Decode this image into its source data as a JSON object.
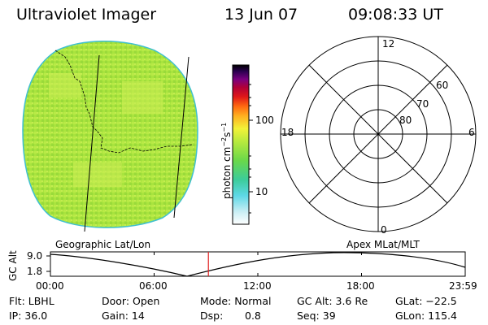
{
  "header": {
    "instrument": "Ultraviolet Imager",
    "date": "13 Jun 07",
    "time": "09:08:33 UT"
  },
  "colorbar": {
    "label_main": "photon cm",
    "label_exp1": "−2",
    "label_mid": "s",
    "label_exp2": "−1",
    "tick_100": "100",
    "tick_10": "10"
  },
  "image_panel": {
    "caption": "Geographic Lat/Lon"
  },
  "polar_panel": {
    "caption": "Apex MLat/MLT",
    "mlt_12": "12",
    "mlt_18": "18",
    "mlt_6": "6",
    "mlt_0": "0",
    "lat_60": "60",
    "lat_70": "70",
    "lat_80": "80"
  },
  "altitude_plot": {
    "ylabel": "GC Alt",
    "y_top": "9.0",
    "y_bottom": "1.8",
    "x_ticks": [
      "00:00",
      "06:00",
      "12:00",
      "18:00",
      "23:59"
    ],
    "current_time_marker_hours": 9.14
  },
  "info": {
    "flt": "Flt: LBHL",
    "door": "Door: Open",
    "mode": "Mode: Normal",
    "gcalt": "GC Alt: 3.6 Re",
    "glat": "GLat: −22.5",
    "ip": "IP: 36.0",
    "gain": "Gain: 14",
    "dsp_label": "Dsp:",
    "dsp_value": "0.8",
    "seq": "Seq: 39",
    "glon": "GLon: 115.4"
  },
  "colors": {
    "disk_fill": "#a8e640",
    "disk_edge": "#3fc0d0",
    "marker": "#e02020"
  }
}
